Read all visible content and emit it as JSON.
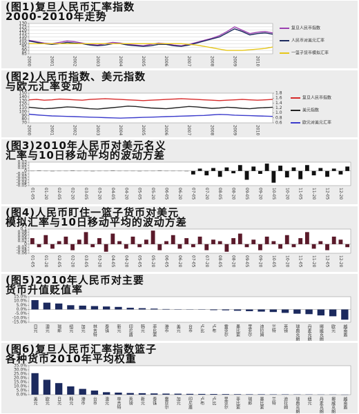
{
  "chart_data": [
    {
      "type": "line",
      "title": [
        "(图1)复旦人民币汇率指数",
        "2000-2010年走势"
      ],
      "grid": true,
      "categories": [
        "2000",
        null,
        null,
        "2001",
        null,
        null,
        "2002",
        null,
        null,
        "2003",
        null,
        null,
        "2004",
        null,
        null,
        "2005",
        null,
        null,
        "2006",
        null,
        null,
        "2007",
        null,
        null,
        "2008",
        null,
        null,
        "2009",
        null,
        null,
        "2010",
        null,
        null
      ],
      "ylim": [
        85,
        130
      ],
      "yticks": [
        85,
        90,
        95,
        100,
        105,
        110,
        115,
        120,
        125,
        130
      ],
      "series": [
        {
          "name": "复旦人民币指数",
          "color": "#9b3fb0",
          "values": [
            105,
            103,
            101,
            100,
            102,
            104,
            103,
            101,
            99,
            98,
            100,
            102,
            101,
            99,
            98,
            97,
            99,
            101,
            100,
            98,
            97,
            99,
            102,
            105,
            108,
            112,
            118,
            125,
            120,
            115,
            117,
            118,
            116
          ]
        },
        {
          "name": "人民币对美元汇率",
          "color": "#1c2a5e",
          "values": [
            104,
            102,
            100,
            99,
            100,
            102,
            101,
            100,
            98,
            97,
            98,
            100,
            100,
            98,
            97,
            96,
            97,
            99,
            99,
            97,
            96,
            98,
            101,
            104,
            107,
            110,
            116,
            122,
            118,
            113,
            115,
            116,
            114
          ]
        },
        {
          "name": "一篮子货币模拟汇率",
          "color": "#e6c619",
          "values": [
            100,
            100,
            100,
            100,
            100,
            100,
            100,
            100,
            100,
            100,
            100,
            100,
            100,
            100,
            100,
            100,
            100,
            100,
            100,
            100,
            100,
            99,
            98,
            96,
            94,
            92,
            90,
            90,
            90,
            91,
            92,
            93,
            95
          ]
        }
      ]
    },
    {
      "type": "line",
      "title": [
        "(图2)人民币指数、美元指数",
        "与欧元汇率变动"
      ],
      "grid": false,
      "categories": [
        "2000",
        null,
        null,
        "2001",
        null,
        null,
        "2002",
        null,
        null,
        "2003",
        null,
        null,
        "2004",
        null,
        null,
        "2005",
        null,
        null,
        "2006",
        null,
        null,
        "2007",
        null,
        null,
        "2008",
        null,
        null,
        "2009",
        null,
        null,
        "2010",
        null,
        null
      ],
      "ylim": [
        70,
        150
      ],
      "yticks": [
        70,
        80,
        90,
        100,
        110,
        120,
        130,
        140,
        150
      ],
      "y2lim": [
        0.6,
        1.8
      ],
      "y2ticks": [
        0.6,
        0.8,
        {
          "value": 1,
          "label": "1.0"
        },
        1.2,
        1.4,
        1.6,
        1.8
      ],
      "series": [
        {
          "name": "复旦人民币指数",
          "color": "#d62828",
          "values": [
            132,
            133,
            131,
            132,
            134,
            133,
            132,
            131,
            133,
            134,
            135,
            134,
            133,
            132,
            131,
            130,
            131,
            132,
            133,
            134,
            135,
            134,
            133,
            132,
            131,
            130,
            131,
            132,
            133,
            132,
            131,
            132,
            133
          ]
        },
        {
          "name": "美元指数",
          "color": "#222222",
          "values": [
            112,
            110,
            108,
            109,
            111,
            113,
            112,
            110,
            108,
            107,
            109,
            111,
            113,
            115,
            114,
            112,
            110,
            109,
            108,
            110,
            112,
            114,
            113,
            111,
            109,
            110,
            112,
            111,
            109,
            108,
            110,
            111,
            112
          ]
        },
        {
          "name": "欧元对美元汇率",
          "color": "#3a3acb",
          "axis": "y2",
          "values": [
            0.95,
            0.92,
            0.9,
            0.88,
            0.87,
            0.86,
            0.85,
            0.84,
            0.83,
            0.82,
            0.81,
            0.8,
            0.79,
            0.8,
            0.81,
            0.82,
            0.83,
            0.84,
            0.85,
            0.86,
            0.87,
            0.88,
            0.89,
            0.9,
            0.92,
            0.94,
            0.93,
            0.91,
            0.9,
            0.89,
            0.88,
            0.87,
            0.86
          ]
        }
      ]
    },
    {
      "type": "bar",
      "title": [
        "(图3)2010年人民币对美元名义",
        "汇率与10日移动平均的波动方差"
      ],
      "grid": false,
      "color": "#111111",
      "categories": [
        "01-05",
        null,
        "01-20",
        null,
        "02-05",
        null,
        "02-20",
        null,
        "03-05",
        null,
        "03-20",
        null,
        "04-05",
        null,
        "04-20",
        null,
        "05-05",
        null,
        "05-20",
        null,
        "06-05",
        null,
        "06-20",
        null,
        "07-05",
        null,
        "07-20",
        null,
        "08-05",
        null,
        "08-20",
        null,
        "09-05",
        null,
        "09-20",
        null,
        "10-05",
        null,
        "10-20",
        null,
        "11-05",
        null,
        "11-20",
        null,
        "12-05",
        null,
        "12-20",
        null
      ],
      "ylim": [
        -0.05,
        0.03
      ],
      "yticks": [
        -0.05,
        -0.04,
        -0.03,
        -0.02,
        -0.01,
        0,
        0.01,
        0.02,
        0.03
      ],
      "values": [
        0,
        0.001,
        0,
        -0.001,
        0,
        0,
        0.001,
        0,
        0,
        -0.001,
        0,
        0,
        0.001,
        0,
        0,
        0,
        -0.001,
        0,
        0,
        0.001,
        0,
        0,
        0,
        -0.001,
        -0.012,
        0.008,
        -0.015,
        0.01,
        -0.02,
        0.012,
        -0.008,
        0.02,
        -0.03,
        0.015,
        -0.01,
        0.025,
        -0.04,
        0.018,
        -0.022,
        0.012,
        -0.028,
        0.02,
        -0.015,
        0.01,
        -0.02,
        0.008,
        -0.012,
        0.015
      ]
    },
    {
      "type": "bar",
      "title": [
        "(图4)人民币盯住一篮子货币对美元",
        "模拟汇率与10日移动平均的波动方差"
      ],
      "grid": false,
      "color": "#5a1a2a",
      "categories": [
        "01-05",
        null,
        "01-20",
        null,
        "02-05",
        null,
        "02-20",
        null,
        "03-05",
        null,
        "03-20",
        null,
        "04-05",
        null,
        "04-20",
        null,
        "05-05",
        null,
        "05-20",
        null,
        "06-05",
        null,
        "06-20",
        null,
        "07-05",
        null,
        "07-20",
        null,
        "08-05",
        null,
        "08-20",
        null,
        "09-05",
        null,
        "09-20",
        null,
        "10-05",
        null,
        "10-20",
        null,
        "11-05",
        null,
        "11-20",
        null,
        "12-05",
        null,
        "12-20",
        null
      ],
      "ylim": [
        -0.06,
        0.1
      ],
      "yticks": [
        -0.06,
        -0.04,
        -0.02,
        0,
        0.02,
        0.04,
        0.06,
        0.08,
        0.1
      ],
      "values": [
        0.04,
        -0.02,
        0.06,
        -0.03,
        0.02,
        0.05,
        -0.04,
        0.03,
        0.08,
        -0.02,
        0.04,
        -0.05,
        0.07,
        0.02,
        -0.03,
        0.05,
        -0.02,
        0.03,
        0.09,
        -0.04,
        0.02,
        0.06,
        -0.03,
        0.04,
        -0.02,
        0.05,
        -0.04,
        0.03,
        0.02,
        -0.05,
        0.04,
        0.07,
        -0.02,
        0.03,
        -0.04,
        0.05,
        0.02,
        -0.03,
        0.06,
        -0.02,
        0.04,
        0.08,
        -0.03,
        0.02,
        -0.04,
        0.05,
        0.03,
        -0.02
      ]
    },
    {
      "type": "bar",
      "title": [
        "(图5)2010年人民币对主要",
        "货币升值贬值率"
      ],
      "grid": false,
      "color": "#1c2a5e",
      "categories": [
        "日元",
        "澳元",
        "瑞郎",
        "纽元",
        "加元",
        "林吉特",
        "泰铢",
        "新元",
        "印尼盾",
        "韩元",
        "菲比索",
        "港币",
        "美元",
        "台币",
        "卢比",
        "卢布",
        "雷亚尔",
        "墨比索",
        "里亚尔",
        "迪拉姆",
        "兰特",
        "英镑",
        "瑞典克朗",
        "丹麦克朗",
        "挪威克朗",
        "欧元",
        "越南盾"
      ],
      "ylim": [
        -15,
        15
      ],
      "yticks": [
        {
          "value": -15,
          "label": "-15.0%"
        },
        {
          "value": -10,
          "label": "-10.0%"
        },
        {
          "value": -5,
          "label": "-5.0%"
        },
        {
          "value": 0,
          "label": "0.0%"
        },
        {
          "value": 5,
          "label": "5.0%"
        },
        {
          "value": 10,
          "label": "10.0%"
        },
        {
          "value": 15,
          "label": "15.0%"
        }
      ],
      "values": [
        11,
        8,
        7,
        5,
        4.5,
        4,
        3.5,
        3,
        2,
        1.5,
        1,
        0.5,
        0.3,
        0,
        -0.3,
        -0.8,
        -1,
        -1.5,
        -2,
        -2.5,
        -3,
        -4,
        -5,
        -5.5,
        -7,
        -8,
        -12
      ]
    },
    {
      "type": "bar",
      "title": [
        "(图6)复旦人民币汇率指数篮子",
        "各种货币2010年平均权重"
      ],
      "grid": false,
      "color": "#1c2a5e",
      "categories": [
        "美元",
        "欧元",
        "日元",
        "韩元",
        "港币",
        "台币",
        "澳元",
        "林吉特",
        "英镑",
        "新元",
        "泰铢",
        "雷亚尔",
        "加元",
        "印尼盾",
        "卢布",
        "卢比",
        "里亚尔",
        "菲比索",
        "瑞郎",
        "墨比索",
        "兰特",
        "迪拉姆",
        "瑞典克朗",
        "纽元",
        "丹麦克朗",
        "挪威克朗",
        "越南盾"
      ],
      "ylim": [
        0,
        35
      ],
      "yticks": [
        {
          "value": 0,
          "label": "0.0%"
        },
        {
          "value": 5,
          "label": "5.0%"
        },
        {
          "value": 10,
          "label": "10.0%"
        },
        {
          "value": 15,
          "label": "15.0%"
        },
        {
          "value": 20,
          "label": "20.0%"
        },
        {
          "value": 25,
          "label": "25.0%"
        },
        {
          "value": 30,
          "label": "30.0%"
        },
        {
          "value": 35,
          "label": "35.0%"
        }
      ],
      "values": [
        26,
        18,
        14,
        10,
        7,
        5,
        3,
        2.5,
        2,
        1.8,
        1.5,
        1.3,
        1.2,
        1,
        0.9,
        0.8,
        0.7,
        0.6,
        0.5,
        0.5,
        0.4,
        0.4,
        0.3,
        0.3,
        0.2,
        0.2,
        0.1
      ]
    }
  ]
}
